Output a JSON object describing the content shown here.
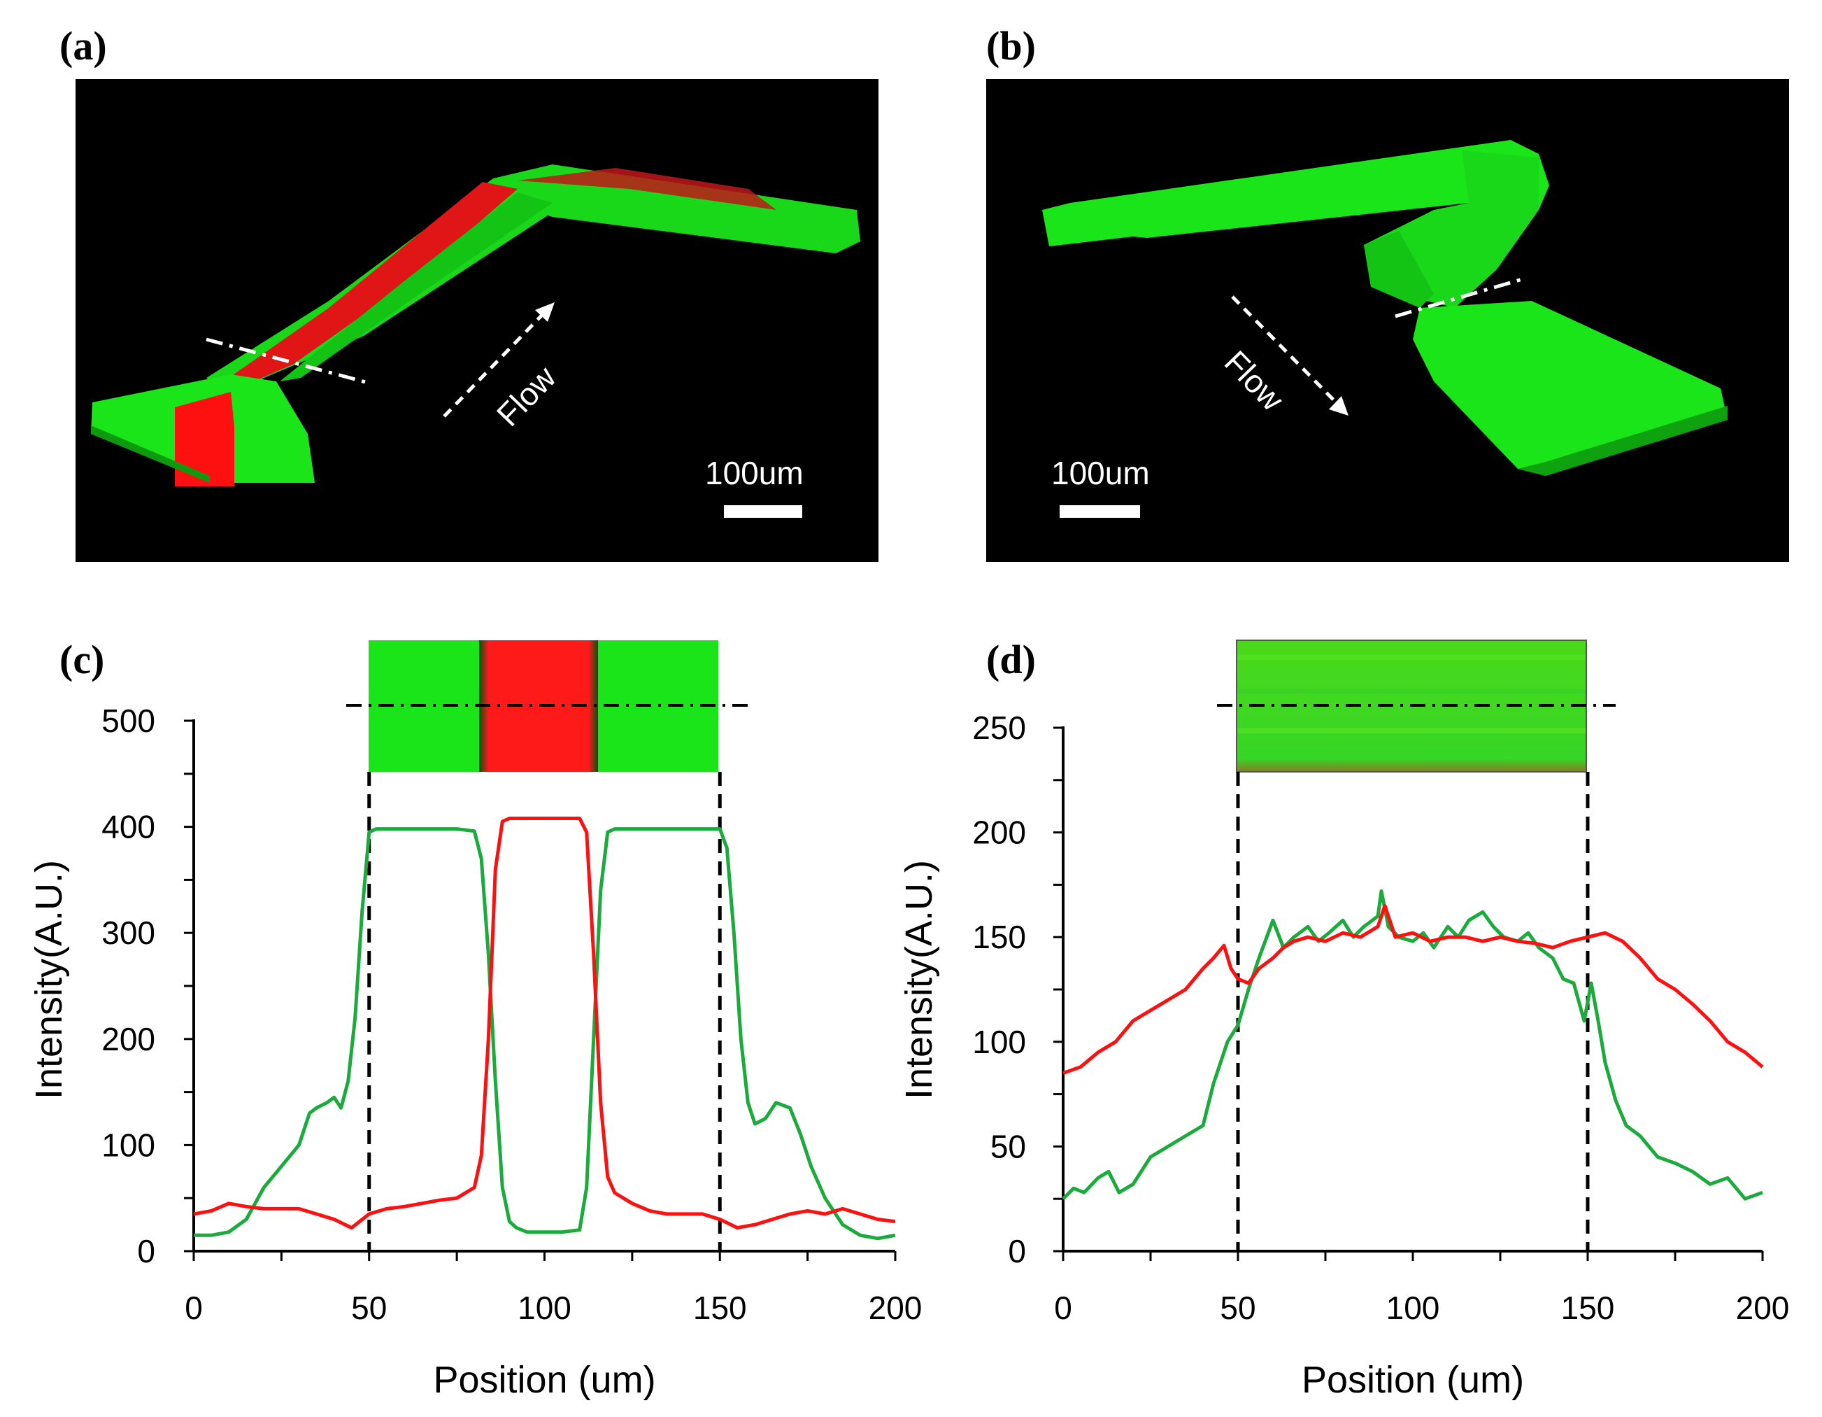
{
  "panels": {
    "a": {
      "label": "(a)",
      "flow_label": "Flow",
      "scale_label": "100um"
    },
    "b": {
      "label": "(b)",
      "flow_label": "Flow",
      "scale_label": "100um"
    },
    "c": {
      "label": "(c)"
    },
    "d": {
      "label": "(d)"
    }
  },
  "colors": {
    "green": "#1aab3c",
    "red": "#ff1010",
    "channel_green": "#19e519",
    "channel_red": "#ff1a1a"
  },
  "chart_data": [
    {
      "id": "c",
      "type": "line",
      "title": "",
      "xlabel": "Position (um)",
      "ylabel": "Intensity(A.U.)",
      "xlim": [
        0,
        200
      ],
      "ylim": [
        0,
        500
      ],
      "xticks": [
        0,
        50,
        100,
        150,
        200
      ],
      "yticks": [
        0,
        100,
        200,
        300,
        400,
        500
      ],
      "markers": [
        50,
        150
      ],
      "series": [
        {
          "name": "Green",
          "color": "#1aab3c",
          "x": [
            0,
            5,
            10,
            15,
            20,
            25,
            30,
            33,
            35,
            38,
            40,
            42,
            44,
            46,
            48,
            50,
            52,
            55,
            60,
            65,
            70,
            75,
            80,
            82,
            84,
            86,
            88,
            90,
            92,
            95,
            100,
            105,
            110,
            112,
            114,
            116,
            118,
            120,
            125,
            130,
            135,
            140,
            145,
            150,
            152,
            154,
            156,
            158,
            160,
            163,
            166,
            170,
            173,
            176,
            180,
            185,
            190,
            195,
            200
          ],
          "y": [
            15,
            15,
            18,
            30,
            60,
            80,
            100,
            130,
            135,
            140,
            145,
            135,
            160,
            220,
            320,
            395,
            398,
            398,
            398,
            398,
            398,
            398,
            396,
            370,
            280,
            160,
            60,
            28,
            22,
            18,
            18,
            18,
            20,
            60,
            200,
            340,
            395,
            398,
            398,
            398,
            398,
            398,
            398,
            398,
            380,
            300,
            200,
            140,
            120,
            125,
            140,
            135,
            110,
            80,
            50,
            25,
            15,
            12,
            15
          ]
        },
        {
          "name": "Red",
          "color": "#ff1010",
          "x": [
            0,
            5,
            10,
            15,
            20,
            25,
            30,
            35,
            40,
            45,
            50,
            55,
            60,
            65,
            70,
            75,
            80,
            82,
            84,
            86,
            88,
            90,
            95,
            100,
            105,
            110,
            112,
            114,
            116,
            118,
            120,
            125,
            130,
            135,
            140,
            145,
            150,
            155,
            160,
            165,
            170,
            175,
            180,
            185,
            190,
            195,
            200
          ],
          "y": [
            35,
            38,
            45,
            42,
            40,
            40,
            40,
            35,
            30,
            22,
            35,
            40,
            42,
            45,
            48,
            50,
            60,
            90,
            200,
            360,
            405,
            408,
            408,
            408,
            408,
            408,
            395,
            280,
            140,
            70,
            55,
            45,
            38,
            35,
            35,
            35,
            30,
            22,
            25,
            30,
            35,
            38,
            35,
            40,
            35,
            30,
            28
          ]
        }
      ],
      "inset": {
        "description": "cross-section image",
        "bands": [
          "green",
          "red",
          "green"
        ]
      }
    },
    {
      "id": "d",
      "type": "line",
      "title": "",
      "xlabel": "Position (um)",
      "ylabel": "Intensity(A.U.)",
      "xlim": [
        0,
        200
      ],
      "ylim": [
        0,
        250
      ],
      "xticks": [
        0,
        50,
        100,
        150,
        200
      ],
      "yticks": [
        0,
        50,
        100,
        150,
        200,
        250
      ],
      "markers": [
        50,
        150
      ],
      "series": [
        {
          "name": "Green",
          "color": "#1aab3c",
          "x": [
            0,
            3,
            6,
            10,
            13,
            16,
            20,
            25,
            30,
            35,
            40,
            43,
            45,
            47,
            50,
            53,
            56,
            60,
            63,
            66,
            70,
            73,
            76,
            80,
            83,
            86,
            90,
            91,
            93,
            96,
            100,
            103,
            106,
            110,
            113,
            116,
            120,
            123,
            126,
            130,
            133,
            136,
            140,
            143,
            146,
            149,
            151,
            153,
            155,
            158,
            161,
            165,
            170,
            175,
            180,
            185,
            190,
            195,
            200
          ],
          "y": [
            25,
            30,
            28,
            35,
            38,
            28,
            32,
            45,
            50,
            55,
            60,
            80,
            90,
            100,
            108,
            125,
            140,
            158,
            145,
            150,
            155,
            148,
            152,
            158,
            150,
            155,
            160,
            172,
            155,
            150,
            148,
            152,
            145,
            155,
            150,
            158,
            162,
            155,
            150,
            148,
            152,
            145,
            140,
            130,
            128,
            110,
            128,
            110,
            90,
            72,
            60,
            55,
            45,
            42,
            38,
            32,
            35,
            25,
            28
          ]
        },
        {
          "name": "Red",
          "color": "#ff1010",
          "x": [
            0,
            5,
            10,
            15,
            20,
            25,
            30,
            35,
            40,
            43,
            46,
            48,
            50,
            53,
            56,
            60,
            63,
            66,
            70,
            75,
            80,
            85,
            90,
            92,
            95,
            100,
            105,
            110,
            115,
            120,
            125,
            130,
            135,
            140,
            145,
            150,
            155,
            160,
            165,
            170,
            175,
            180,
            185,
            190,
            195,
            200
          ],
          "y": [
            85,
            88,
            95,
            100,
            110,
            115,
            120,
            125,
            135,
            140,
            146,
            135,
            130,
            128,
            135,
            140,
            145,
            148,
            150,
            148,
            152,
            150,
            155,
            165,
            150,
            152,
            148,
            150,
            150,
            148,
            150,
            148,
            147,
            145,
            148,
            150,
            152,
            148,
            140,
            130,
            125,
            118,
            110,
            100,
            95,
            88
          ]
        }
      ],
      "inset": {
        "description": "cross-section image",
        "bands": [
          "green"
        ]
      }
    }
  ]
}
